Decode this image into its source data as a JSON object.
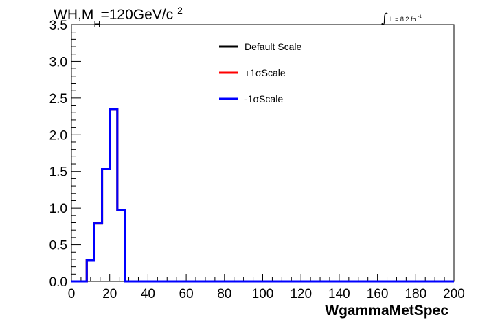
{
  "chart_data": {
    "type": "line",
    "title": {
      "main": "WH,M",
      "subscript": "H",
      "rest": "=120GeV/c",
      "superscript": "2"
    },
    "lumi": {
      "symbol": "∫",
      "text": "L = 8.2 fb",
      "superscript": "-1"
    },
    "xlabel": "WgammaMetSpec",
    "ylabel": "",
    "xlim": [
      0,
      200
    ],
    "ylim": [
      0,
      3.5
    ],
    "x_ticks": [
      "0",
      "20",
      "40",
      "60",
      "80",
      "100",
      "120",
      "140",
      "160",
      "180",
      "200"
    ],
    "y_ticks": [
      "0.0",
      "0.5",
      "1.0",
      "1.5",
      "2.0",
      "2.5",
      "3.0",
      "3.5"
    ],
    "bin_edges": [
      0,
      4,
      8,
      12,
      16,
      20,
      24,
      28,
      32,
      36,
      40,
      44,
      48,
      52,
      56,
      60,
      64,
      68,
      72,
      76,
      80,
      84,
      88,
      92,
      96,
      100,
      104,
      108,
      112,
      116,
      120,
      124,
      128,
      132,
      136,
      140,
      144,
      148,
      152,
      156,
      160,
      164,
      168,
      172,
      176,
      180,
      184,
      188,
      192,
      196,
      200
    ],
    "series": [
      {
        "name": "Default Scale",
        "color": "#000000",
        "values": [
          0,
          0,
          0.29,
          0.79,
          1.53,
          2.35,
          0.97,
          0,
          0,
          0,
          0,
          0,
          0,
          0,
          0,
          0,
          0,
          0,
          0,
          0,
          0,
          0,
          0,
          0,
          0,
          0,
          0,
          0,
          0,
          0,
          0,
          0,
          0,
          0,
          0,
          0,
          0,
          0,
          0,
          0,
          0,
          0,
          0,
          0,
          0,
          0,
          0,
          0,
          0,
          0
        ]
      },
      {
        "name": "+1σScale",
        "color": "#ff0000",
        "values": [
          0,
          0,
          0.29,
          0.79,
          1.53,
          2.35,
          0.97,
          0,
          0,
          0,
          0,
          0,
          0,
          0,
          0,
          0,
          0,
          0,
          0,
          0,
          0,
          0,
          0,
          0,
          0,
          0,
          0,
          0,
          0,
          0,
          0,
          0,
          0,
          0,
          0,
          0,
          0,
          0,
          0,
          0,
          0,
          0,
          0,
          0,
          0,
          0,
          0,
          0,
          0,
          0
        ]
      },
      {
        "name": "-1σScale",
        "color": "#0000ff",
        "values": [
          0,
          0,
          0.29,
          0.79,
          1.53,
          2.35,
          0.97,
          0,
          0,
          0,
          0,
          0,
          0,
          0,
          0,
          0,
          0,
          0,
          0,
          0,
          0,
          0,
          0,
          0,
          0,
          0,
          0,
          0,
          0,
          0,
          0,
          0,
          0,
          0,
          0,
          0,
          0,
          0,
          0,
          0,
          0,
          0,
          0,
          0,
          0,
          0,
          0,
          0,
          0,
          0
        ]
      }
    ],
    "legend_position": "top-center",
    "grid": false
  }
}
